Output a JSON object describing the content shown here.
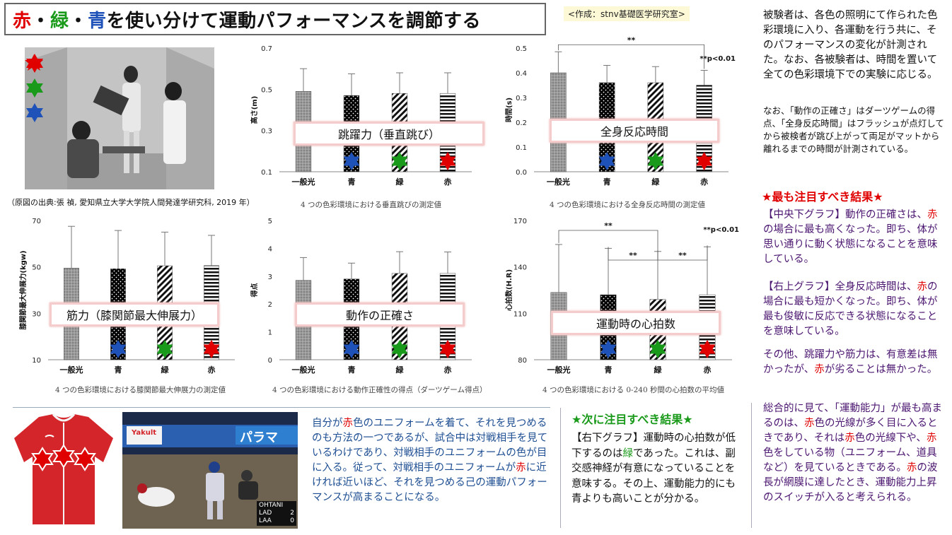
{
  "title": {
    "part1": "赤",
    "sep1": "・",
    "part2": "緑",
    "sep2": "・",
    "part3": "青",
    "rest": "を使い分けて運動パフォーマンスを調節する"
  },
  "author_tag": "<作成：stnv基礎医学研究室>",
  "photo_caption": "（原図の出典:張 禎, 愛知県立大学大学院人間発達学研究科, 2019 年）",
  "colors": {
    "red": "#e00000",
    "green": "#1a9a1a",
    "blue": "#1f52b8",
    "purple": "#4b1670"
  },
  "star_icons": [
    "red-star-icon",
    "green-star-icon",
    "blue-star-icon"
  ],
  "chart_data": [
    {
      "type": "bar",
      "id": "jump",
      "overlay_label": "跳躍力（垂直跳び）",
      "caption": "4 つの色彩環境における垂直跳びの測定値",
      "ylabel": "高さ(m)",
      "categories": [
        "一般光",
        "青",
        "緑",
        "赤"
      ],
      "values": [
        0.49,
        0.47,
        0.48,
        0.48
      ],
      "errors": [
        0.11,
        0.105,
        0.1,
        0.1
      ],
      "ylim": [
        0.1,
        0.7
      ],
      "yticks": [
        "0.1",
        "0.3",
        "0.5",
        "0.7"
      ],
      "significance": []
    },
    {
      "type": "bar",
      "id": "reaction",
      "overlay_label": "全身反応時間",
      "caption": "4 つの色彩環境における全身反応時間の測定値",
      "ylabel": "時間(s)",
      "categories": [
        "一般光",
        "青",
        "緑",
        "赤"
      ],
      "values": [
        0.4,
        0.36,
        0.36,
        0.35
      ],
      "errors": [
        0.085,
        0.07,
        0.065,
        0.06
      ],
      "ylim": [
        0.0,
        0.5
      ],
      "yticks": [
        "0.0",
        "0.1",
        "0.2",
        "0.3",
        "0.4",
        "0.5"
      ],
      "significance_note": "**p<0.01",
      "significance": [
        {
          "from": 0,
          "to": 3,
          "mark": "**"
        }
      ]
    },
    {
      "type": "bar",
      "id": "strength",
      "overlay_label": "筋力（膝関節最大伸展力）",
      "caption": "4 つの色彩環境における膝関節最大伸展力の測定値",
      "ylabel": "膝関節最大伸展力(kgw)",
      "categories": [
        "一般光",
        "青",
        "緑",
        "赤"
      ],
      "values": [
        49.5,
        49.2,
        50.5,
        50.6
      ],
      "errors": [
        18,
        16.5,
        14.5,
        13
      ],
      "ylim": [
        10,
        70
      ],
      "yticks": [
        "10",
        "30",
        "50",
        "70"
      ],
      "significance": []
    },
    {
      "type": "bar",
      "id": "accuracy",
      "overlay_label": "動作の正確さ",
      "caption": "4 つの色彩環境における動作正確性の得点（ダーツゲーム得点）",
      "ylabel": "得点",
      "categories": [
        "一般光",
        "青",
        "緑",
        "赤"
      ],
      "values": [
        2.85,
        2.9,
        3.1,
        3.1
      ],
      "errors": [
        0.82,
        0.57,
        0.78,
        0.77
      ],
      "ylim": [
        0,
        5
      ],
      "yticks": [
        "0",
        "1",
        "2",
        "3",
        "4",
        "5"
      ],
      "significance": []
    },
    {
      "type": "bar",
      "id": "heart",
      "overlay_label": "運動時の心拍数",
      "caption": "4 つの色彩環境における 0-240 秒間の心拍数の平均値",
      "ylabel": "心拍数(H.R)",
      "categories": [
        "一般光",
        "青",
        "緑",
        "赤"
      ],
      "values": [
        123.5,
        122,
        119,
        122
      ],
      "errors": [
        31,
        30,
        31,
        31
      ],
      "ylim": [
        80,
        170
      ],
      "yticks": [
        "80",
        "110",
        "140",
        "170"
      ],
      "significance_note": "**p<0.01",
      "significance": [
        {
          "from": 0,
          "to": 2,
          "mark": "**"
        },
        {
          "from": 1,
          "to": 2,
          "mark": "**"
        },
        {
          "from": 2,
          "to": 3,
          "mark": "**"
        }
      ]
    }
  ],
  "right_panel": {
    "intro": "被験者は、各色の照明にて作られた色彩環境に入り、各運動を行う共に、そのパフォーマンスの変化が計測された。なお、各被験者は、時間を置いて全ての色彩環境下での実験に応じる。",
    "note": "なお、「動作の正確さ」はダーツゲームの得点、「全身反応時間」はフラッシュが点灯してから被検者が跳び上がって両足がマットから離れるまでの時間が計測されている。",
    "key_head": "★最も注目すべき結果★",
    "p1a": "【中央下グラフ】動作の正確さは、",
    "p1b": "赤",
    "p1c": "の場合に最も高くなった。即ち、体が思い通りに動く状態になることを意味している。",
    "p2a": "【右上グラフ】全身反応時間は、",
    "p2b": "赤",
    "p2c": "の場合に最も短かくなった。即ち、体が最も俊敏に反応できる状態になることを意味している。",
    "p3a": "その他、跳躍力や筋力は、有意差は無かったが、",
    "p3b": "赤",
    "p3c": "が劣ることは無かった。",
    "p4a": "総合的に見て、「運動能力」が最も高まるのは、",
    "p4b": "赤",
    "p4c": "色の光線が多く目に入るときであり、それは",
    "p4d": "赤",
    "p4e": "色の光線下や、",
    "p4f": "赤",
    "p4g": "色をしている物（ユニフォーム、道具など）を見ているときである。",
    "p4h": "赤",
    "p4i": "の波長が網膜に達したとき、運動能力上昇のスイッチが入ると考えられる。"
  },
  "center_text": {
    "a": "自分が",
    "b": "赤",
    "c": "色のユニフォームを着て、それを見つめるのも方法の一つであるが、試合中は対戦相手を見ているわけであり、対戦相手のユニフォームの色が目に入る。従って、対戦相手のユニフォームが",
    "d": "赤",
    "e": "に近ければ近いほど、それを見つめる己の運動パフォーマンスが高まることになる。"
  },
  "next_result": {
    "head": "★次に注目すべき結果★",
    "a": "【右下グラフ】運動時の心拍数が低下するのは",
    "b": "緑",
    "c": "であった。これは、副交感神経が有意になっていることを意味する。その上、運動能力的にも青よりも高いことが分かる。"
  },
  "game_photo": {
    "banner1": "Yakult",
    "banner2": "パラマ",
    "score_title": "OHTANI",
    "team1": "LAD",
    "score1": "2",
    "team2": "LAA",
    "score2": "0"
  }
}
